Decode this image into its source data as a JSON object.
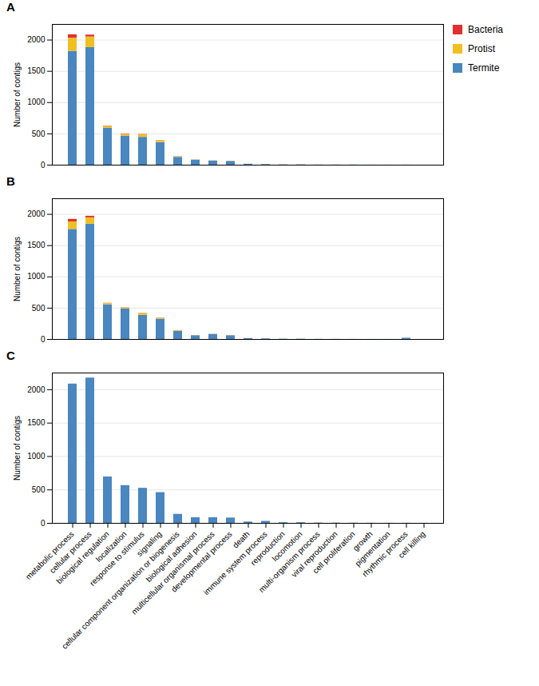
{
  "chart_data": [
    {
      "type": "bar",
      "title": "A",
      "stacked": true,
      "ylabel": "Number of contigs",
      "categories": [
        "metabolic process",
        "cellular process",
        "biological regulation",
        "localization",
        "response to stimulus",
        "signaling",
        "cellular component organization or biogenesis",
        "biological adhesion",
        "multicellular organismal process",
        "developmental process",
        "death",
        "immune system process",
        "reproduction",
        "locomotion",
        "multi-organism process",
        "viral reproduction",
        "cell proliferation",
        "growth",
        "pigmentation",
        "rhythmic process",
        "cell killing"
      ],
      "series": [
        {
          "name": "Termite",
          "color": "#4a86c0",
          "values": [
            1820,
            1880,
            590,
            465,
            445,
            360,
            125,
            80,
            65,
            60,
            15,
            10,
            5,
            5,
            2,
            2,
            2,
            1,
            1,
            1,
            0
          ]
        },
        {
          "name": "Protist",
          "color": "#f0c020",
          "values": [
            210,
            170,
            30,
            30,
            40,
            25,
            10,
            3,
            3,
            3,
            1,
            1,
            0,
            0,
            0,
            0,
            0,
            0,
            0,
            0,
            0
          ]
        },
        {
          "name": "Bacteria",
          "color": "#e03030",
          "values": [
            55,
            30,
            5,
            5,
            5,
            5,
            2,
            1,
            1,
            1,
            0,
            0,
            0,
            0,
            0,
            0,
            0,
            0,
            0,
            0,
            0
          ]
        }
      ],
      "ylim": [
        0,
        2250
      ],
      "yticks": [
        0,
        500,
        1000,
        1500,
        2000
      ],
      "grid": true,
      "legend": "right",
      "tick_labels": "y"
    },
    {
      "type": "bar",
      "title": "B",
      "stacked": true,
      "ylabel": "Number of contigs",
      "categories": [
        "metabolic process",
        "cellular process",
        "biological regulation",
        "localization",
        "response to stimulus",
        "signaling",
        "cellular component organization or biogenesis",
        "biological adhesion",
        "multicellular organismal process",
        "developmental process",
        "death",
        "immune system process",
        "reproduction",
        "locomotion",
        "multi-organism process",
        "viral reproduction",
        "cell proliferation",
        "growth",
        "pigmentation",
        "rhythmic process",
        "cell killing"
      ],
      "series": [
        {
          "name": "Termite",
          "color": "#4a86c0",
          "values": [
            1760,
            1845,
            555,
            490,
            385,
            325,
            130,
            60,
            80,
            60,
            15,
            10,
            5,
            5,
            2,
            2,
            1,
            1,
            1,
            20,
            0
          ]
        },
        {
          "name": "Protist",
          "color": "#f0c020",
          "values": [
            120,
            100,
            20,
            15,
            30,
            15,
            10,
            3,
            3,
            3,
            1,
            1,
            0,
            0,
            0,
            0,
            0,
            0,
            0,
            0,
            0
          ]
        },
        {
          "name": "Bacteria",
          "color": "#e03030",
          "values": [
            40,
            25,
            3,
            3,
            3,
            3,
            2,
            1,
            1,
            1,
            0,
            0,
            0,
            0,
            0,
            0,
            0,
            0,
            0,
            0,
            0
          ]
        }
      ],
      "ylim": [
        0,
        2250
      ],
      "yticks": [
        0,
        500,
        1000,
        1500,
        2000
      ],
      "grid": true,
      "tick_labels": "y"
    },
    {
      "type": "bar",
      "title": "C",
      "stacked": true,
      "ylabel": "Number of contigs",
      "categories": [
        "metabolic process",
        "cellular process",
        "biological regulation",
        "localization",
        "response to stimulus",
        "signaling",
        "cellular component organization or biogenesis",
        "biological adhesion",
        "multicellular organismal process",
        "developmental process",
        "death",
        "immune system process",
        "reproduction",
        "locomotion",
        "multi-organism process",
        "viral reproduction",
        "cell proliferation",
        "growth",
        "pigmentation",
        "rhythmic process",
        "cell killing"
      ],
      "series": [
        {
          "name": "Termite",
          "color": "#4a86c0",
          "values": [
            2085,
            2175,
            695,
            565,
            525,
            460,
            135,
            85,
            85,
            80,
            20,
            30,
            10,
            10,
            5,
            4,
            3,
            2,
            2,
            2,
            1
          ]
        },
        {
          "name": "Protist",
          "color": "#f0c020",
          "values": [
            0,
            0,
            0,
            0,
            0,
            0,
            0,
            0,
            0,
            0,
            0,
            0,
            0,
            0,
            0,
            0,
            0,
            0,
            0,
            0,
            0
          ]
        },
        {
          "name": "Bacteria",
          "color": "#e03030",
          "values": [
            0,
            0,
            0,
            0,
            0,
            0,
            0,
            0,
            0,
            0,
            0,
            0,
            0,
            0,
            0,
            0,
            0,
            0,
            0,
            0,
            0
          ]
        }
      ],
      "ylim": [
        0,
        2250
      ],
      "yticks": [
        0,
        500,
        1000,
        1500,
        2000
      ],
      "grid": true
    }
  ]
}
